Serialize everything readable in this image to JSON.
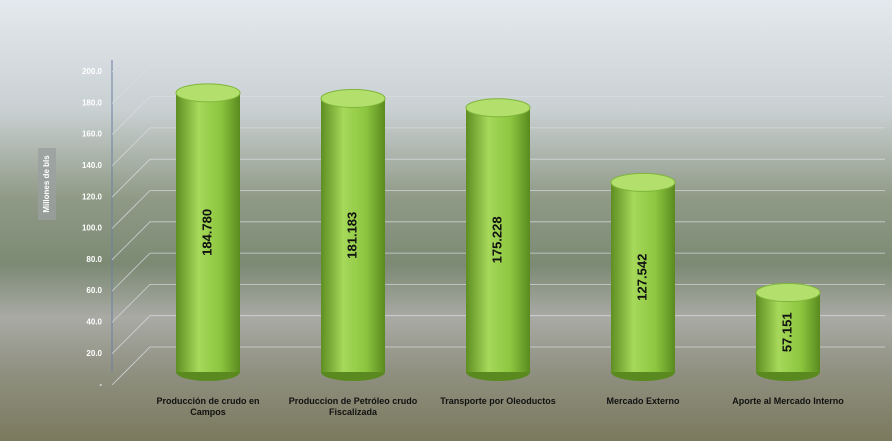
{
  "chart_data": {
    "type": "cylinder-bar",
    "y_axis_label": "Millones de bls",
    "categories": [
      "Producción de crudo en Campos",
      "Produccion de Petróleo crudo Fiscalizada",
      "Transporte por Oleoductos",
      "Mercado Externo",
      "Aporte al Mercado Interno"
    ],
    "values": [
      184.78,
      181.183,
      175.228,
      127.542,
      57.151
    ],
    "value_labels": [
      "184.780",
      "181.183",
      "175.228",
      "127.542",
      "57.151"
    ],
    "color": "#8cc63f",
    "ylim": [
      0,
      200
    ],
    "yticks": [
      {
        "value": 0,
        "label": "-"
      },
      {
        "value": 20,
        "label": "20.0"
      },
      {
        "value": 40,
        "label": "40.0"
      },
      {
        "value": 60,
        "label": "60.0"
      },
      {
        "value": 80,
        "label": "80.0"
      },
      {
        "value": 100,
        "label": "100.0"
      },
      {
        "value": 120,
        "label": "120.0"
      },
      {
        "value": 140,
        "label": "140.0"
      },
      {
        "value": 160,
        "label": "160.0"
      },
      {
        "value": 180,
        "label": "180.0"
      },
      {
        "value": 200,
        "label": "200.0"
      }
    ],
    "grid": true
  }
}
